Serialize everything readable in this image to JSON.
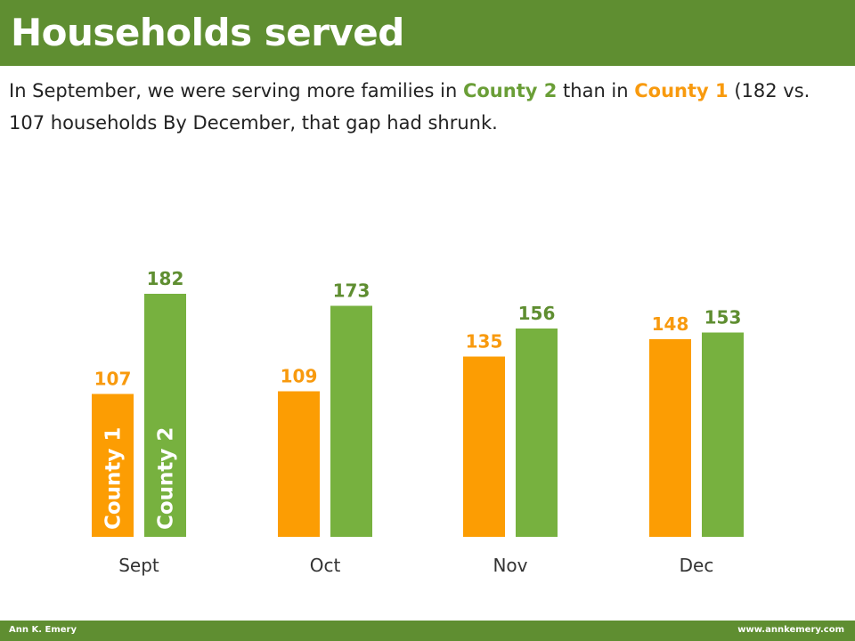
{
  "header": {
    "title": "Households served"
  },
  "subtitle": {
    "part1": "In September, we were serving more families in ",
    "county2": "County 2",
    "part2": " than in ",
    "county1": "County 1",
    "part3": " (182 vs. 107 households By December, that gap had shrunk."
  },
  "colors": {
    "county1": "#fc9d03",
    "county2": "#77b13f",
    "county1_label": "#f89a0e",
    "county2_label": "#5f8e31",
    "brand": "#5f8e31"
  },
  "chart_data": {
    "type": "bar",
    "categories": [
      "Sept",
      "Oct",
      "Nov",
      "Dec"
    ],
    "series": [
      {
        "name": "County 1",
        "values": [
          107,
          109,
          135,
          148
        ]
      },
      {
        "name": "County 2",
        "values": [
          182,
          173,
          156,
          153
        ]
      }
    ],
    "title": "",
    "xlabel": "",
    "ylabel": "",
    "ylim": [
      0,
      200
    ],
    "grid": false,
    "legend": "labels inside first bars"
  },
  "footer": {
    "author": "Ann K. Emery",
    "website": "www.annkemery.com"
  }
}
